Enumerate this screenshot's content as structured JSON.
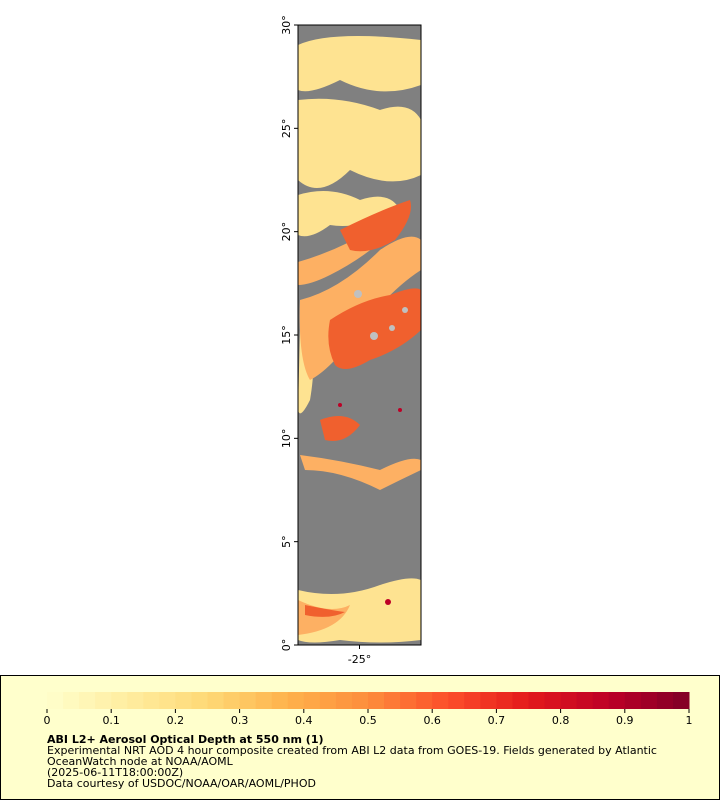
{
  "chart_data": {
    "type": "map",
    "title": "ABI L2+ Aerosol Optical Depth at 550 nm (1)",
    "description": [
      "Experimental NRT AOD 4 hour composite created from ABI L2 data from GOES-19. Fields generated by Atlantic",
      "OceanWatch node at NOAA/AOML",
      "(2025-06-11T18:00:00Z)",
      "Data courtesy of USDOC/NOAA/OAR/AOML/PHOD"
    ],
    "xlim": [
      -28,
      -22
    ],
    "xticks": [
      {
        "value": -25,
        "label": "-25°"
      }
    ],
    "ylim": [
      0,
      30
    ],
    "yticks": [
      {
        "value": 0,
        "label": "0°"
      },
      {
        "value": 5,
        "label": "5°"
      },
      {
        "value": 10,
        "label": "10°"
      },
      {
        "value": 15,
        "label": "15°"
      },
      {
        "value": 20,
        "label": "20°"
      },
      {
        "value": 25,
        "label": "25°"
      },
      {
        "value": 30,
        "label": "30°"
      }
    ],
    "colorbar": {
      "lim": [
        0,
        1
      ],
      "ticks": [
        0,
        0.1,
        0.2,
        0.3,
        0.4,
        0.5,
        0.6,
        0.7,
        0.8,
        0.9,
        1
      ],
      "colors": [
        "#ffffcc",
        "#ffeda0",
        "#fed976",
        "#feb24c",
        "#fd8d3c",
        "#fc4e2a",
        "#e31a1c",
        "#bd0026",
        "#800026"
      ]
    },
    "missing_color": "#808080"
  }
}
